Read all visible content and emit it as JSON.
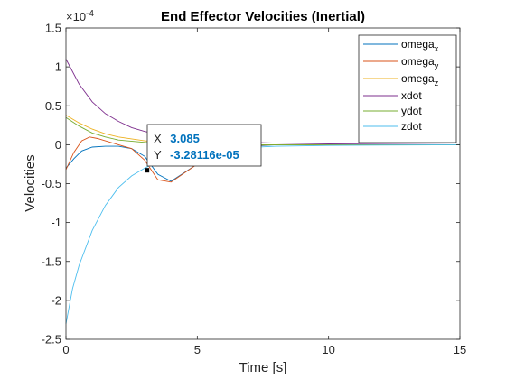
{
  "chart_data": {
    "type": "line",
    "title": "End Effector Velocities (Inertial)",
    "xlabel": "Time [s]",
    "ylabel": "Velocities",
    "exponent_label": "×10",
    "exponent_power": "-4",
    "xlim": [
      0,
      15
    ],
    "ylim": [
      -2.5,
      1.5
    ],
    "y_scale": 0.0001,
    "xticks": [
      0,
      5,
      10,
      15
    ],
    "xtick_labels": [
      "0",
      "5",
      "10",
      "15"
    ],
    "yticks": [
      -2.5,
      -2,
      -1.5,
      -1,
      -0.5,
      0,
      0.5,
      1,
      1.5
    ],
    "ytick_labels": [
      "-2.5",
      "-2",
      "-1.5",
      "-1",
      "-0.5",
      "0",
      "0.5",
      "1",
      "1.5"
    ],
    "grid": false,
    "legend_position": "top-right",
    "series": [
      {
        "name": "omega_x",
        "label_main": "omega",
        "label_sub": "x",
        "color": "#0072bd",
        "x": [
          0,
          0.3,
          0.6,
          1,
          1.5,
          2,
          2.5,
          3,
          3.5,
          4,
          5,
          6,
          7,
          8,
          10,
          12,
          15
        ],
        "y": [
          -0.3,
          -0.18,
          -0.08,
          -0.03,
          -0.02,
          -0.02,
          -0.05,
          -0.15,
          -0.38,
          -0.47,
          -0.25,
          -0.07,
          -0.02,
          0.0,
          0.0,
          0.0,
          0.0
        ]
      },
      {
        "name": "omega_y",
        "label_main": "omega",
        "label_sub": "y",
        "color": "#d95319",
        "x": [
          0,
          0.3,
          0.6,
          0.9,
          1.2,
          1.6,
          2,
          2.5,
          3,
          3.5,
          4,
          5,
          6,
          7,
          8,
          10,
          12,
          15
        ],
        "y": [
          -0.32,
          -0.1,
          0.05,
          0.1,
          0.08,
          0.04,
          0.0,
          -0.05,
          -0.2,
          -0.45,
          -0.48,
          -0.25,
          -0.06,
          -0.01,
          0.0,
          0.0,
          0.0,
          0.0
        ]
      },
      {
        "name": "omega_z",
        "label_main": "omega",
        "label_sub": "z",
        "color": "#edb120",
        "x": [
          0,
          0.5,
          1,
          1.5,
          2,
          3,
          4,
          5,
          7,
          10,
          15
        ],
        "y": [
          0.38,
          0.28,
          0.2,
          0.14,
          0.1,
          0.05,
          0.02,
          0.01,
          0.0,
          0.0,
          0.0
        ]
      },
      {
        "name": "xdot",
        "label_main": "xdot",
        "label_sub": "",
        "color": "#7e2f8e",
        "x": [
          0,
          0.5,
          1,
          1.5,
          2,
          2.5,
          3,
          4,
          5,
          6,
          8,
          10,
          15
        ],
        "y": [
          1.1,
          0.78,
          0.55,
          0.4,
          0.3,
          0.22,
          0.17,
          0.1,
          0.06,
          0.04,
          0.02,
          0.01,
          0.0
        ]
      },
      {
        "name": "ydot",
        "label_main": "ydot",
        "label_sub": "",
        "color": "#77ac30",
        "x": [
          0,
          0.5,
          1,
          1.5,
          2,
          3,
          4,
          5,
          7,
          10,
          15
        ],
        "y": [
          0.35,
          0.24,
          0.15,
          0.1,
          0.06,
          0.03,
          0.01,
          0.0,
          0.0,
          0.0,
          0.0
        ]
      },
      {
        "name": "zdot",
        "label_main": "zdot",
        "label_sub": "",
        "color": "#4dbeee",
        "x": [
          0,
          0.25,
          0.5,
          1,
          1.5,
          2,
          2.5,
          3,
          3.5,
          4,
          5,
          6,
          8,
          10,
          12,
          15
        ],
        "y": [
          -2.3,
          -1.85,
          -1.55,
          -1.1,
          -0.78,
          -0.55,
          -0.4,
          -0.3,
          -0.22,
          -0.16,
          -0.09,
          -0.05,
          -0.02,
          -0.01,
          -0.005,
          0.0
        ]
      }
    ],
    "datatip": {
      "x_label": "X",
      "x_value": "3.085",
      "y_label": "Y",
      "y_value": "-3.28116e-05",
      "point_x": 3.085,
      "point_y": -0.328116
    }
  }
}
